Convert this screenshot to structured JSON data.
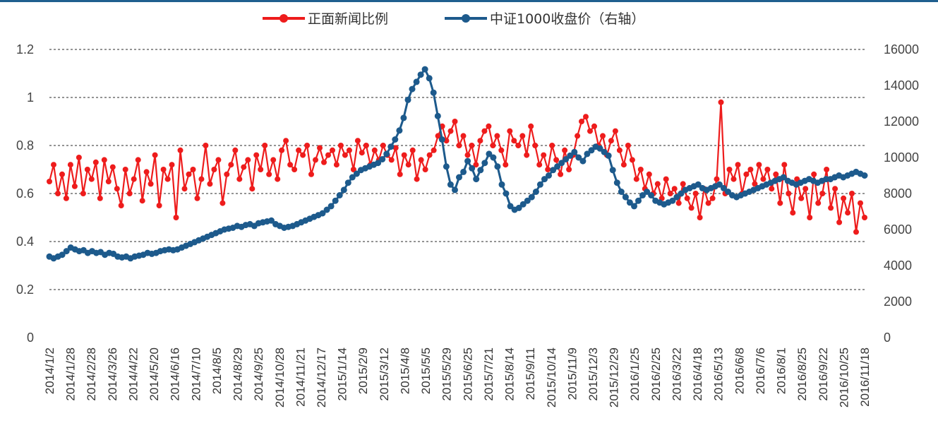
{
  "chart_data": {
    "type": "line",
    "title": "",
    "legend": {
      "position": "top-center",
      "items": [
        {
          "label": "正面新闻比例",
          "color": "#ee1c1c"
        },
        {
          "label": "中证1000收盘价（右轴）",
          "color": "#1d5a8c"
        }
      ]
    },
    "grid": "horizontal-dashed",
    "left_axis": {
      "min": 0,
      "max": 1.2,
      "ticks": [
        "0",
        "0.2",
        "0.4",
        "0.6",
        "0.8",
        "1",
        "1.2"
      ]
    },
    "right_axis": {
      "min": 0,
      "max": 16000,
      "ticks": [
        "0",
        "2000",
        "4000",
        "6000",
        "8000",
        "10000",
        "12000",
        "14000",
        "16000"
      ]
    },
    "x_tick_labels": [
      "2014/1/2",
      "2014/1/28",
      "2014/2/28",
      "2014/3/26",
      "2014/4/22",
      "2014/5/20",
      "2014/6/16",
      "2014/7/10",
      "2014/8/5",
      "2014/8/29",
      "2014/9/25",
      "2014/10/28",
      "2014/11/21",
      "2014/12/17",
      "2015/1/14",
      "2015/2/9",
      "2015/3/12",
      "2015/4/8",
      "2015/5/5",
      "2015/5/29",
      "2015/6/25",
      "2015/7/21",
      "2015/8/14",
      "2015/9/11",
      "2015/10/14",
      "2015/11/9",
      "2015/12/3",
      "2015/12/29",
      "2016/1/25",
      "2016/2/25",
      "2016/3/22",
      "2016/4/18",
      "2016/5/13",
      "2016/6/8",
      "2016/7/6",
      "2016/8/1",
      "2016/8/25",
      "2016/9/22",
      "2016/10/25",
      "2016/11/18"
    ],
    "series": [
      {
        "name": "正面新闻比例",
        "axis": "left",
        "values": [
          0.65,
          0.72,
          0.6,
          0.68,
          0.58,
          0.72,
          0.63,
          0.75,
          0.6,
          0.7,
          0.66,
          0.73,
          0.58,
          0.74,
          0.65,
          0.71,
          0.62,
          0.55,
          0.7,
          0.6,
          0.66,
          0.74,
          0.57,
          0.69,
          0.64,
          0.76,
          0.55,
          0.7,
          0.66,
          0.72,
          0.5,
          0.78,
          0.62,
          0.68,
          0.7,
          0.58,
          0.66,
          0.8,
          0.64,
          0.7,
          0.74,
          0.56,
          0.68,
          0.72,
          0.78,
          0.66,
          0.71,
          0.74,
          0.62,
          0.76,
          0.7,
          0.8,
          0.68,
          0.74,
          0.66,
          0.78,
          0.82,
          0.72,
          0.7,
          0.78,
          0.76,
          0.8,
          0.68,
          0.74,
          0.79,
          0.73,
          0.76,
          0.78,
          0.72,
          0.8,
          0.76,
          0.78,
          0.7,
          0.82,
          0.77,
          0.8,
          0.72,
          0.78,
          0.74,
          0.8,
          0.76,
          0.74,
          0.79,
          0.68,
          0.76,
          0.72,
          0.78,
          0.66,
          0.74,
          0.7,
          0.76,
          0.78,
          0.84,
          0.88,
          0.82,
          0.86,
          0.9,
          0.8,
          0.84,
          0.76,
          0.8,
          0.72,
          0.82,
          0.86,
          0.88,
          0.8,
          0.84,
          0.78,
          0.72,
          0.86,
          0.82,
          0.8,
          0.84,
          0.76,
          0.88,
          0.8,
          0.72,
          0.76,
          0.7,
          0.8,
          0.74,
          0.68,
          0.78,
          0.7,
          0.76,
          0.84,
          0.9,
          0.92,
          0.86,
          0.88,
          0.8,
          0.84,
          0.76,
          0.82,
          0.86,
          0.78,
          0.72,
          0.8,
          0.74,
          0.66,
          0.7,
          0.62,
          0.68,
          0.6,
          0.64,
          0.58,
          0.66,
          0.6,
          0.62,
          0.56,
          0.64,
          0.58,
          0.54,
          0.6,
          0.5,
          0.62,
          0.56,
          0.58,
          0.66,
          0.98,
          0.6,
          0.7,
          0.66,
          0.72,
          0.6,
          0.68,
          0.7,
          0.64,
          0.72,
          0.66,
          0.7,
          0.62,
          0.68,
          0.56,
          0.72,
          0.6,
          0.52,
          0.66,
          0.58,
          0.62,
          0.5,
          0.68,
          0.56,
          0.6,
          0.7,
          0.54,
          0.62,
          0.48,
          0.58,
          0.52,
          0.6,
          0.44,
          0.56,
          0.5
        ]
      },
      {
        "name": "中证1000收盘价（右轴）",
        "axis": "right",
        "values": [
          4500,
          4400,
          4500,
          4600,
          4800,
          5000,
          4900,
          4800,
          4850,
          4700,
          4800,
          4700,
          4750,
          4600,
          4700,
          4650,
          4500,
          4450,
          4500,
          4400,
          4500,
          4550,
          4600,
          4700,
          4650,
          4700,
          4800,
          4850,
          4900,
          4850,
          4900,
          5000,
          5100,
          5200,
          5300,
          5400,
          5500,
          5600,
          5700,
          5800,
          5900,
          6000,
          6050,
          6100,
          6200,
          6150,
          6250,
          6300,
          6200,
          6350,
          6400,
          6450,
          6500,
          6300,
          6200,
          6100,
          6150,
          6200,
          6300,
          6400,
          6500,
          6600,
          6700,
          6800,
          6900,
          7100,
          7300,
          7600,
          7900,
          8200,
          8600,
          8900,
          9100,
          9300,
          9400,
          9500,
          9600,
          9700,
          9900,
          10200,
          10600,
          11000,
          11500,
          12200,
          13200,
          13800,
          14200,
          14600,
          14900,
          14400,
          13600,
          12300,
          11000,
          9500,
          8500,
          8200,
          8900,
          9200,
          9800,
          9400,
          8800,
          9300,
          9700,
          10200,
          10000,
          9500,
          8500,
          8000,
          7300,
          7100,
          7200,
          7400,
          7600,
          7800,
          8100,
          8500,
          8800,
          9000,
          9300,
          9500,
          9700,
          9900,
          10100,
          10300,
          10000,
          9800,
          10200,
          10400,
          10600,
          10500,
          10300,
          10100,
          9300,
          8600,
          8100,
          7800,
          7500,
          7300,
          7600,
          7900,
          8100,
          7900,
          7600,
          7500,
          7400,
          7500,
          7600,
          7800,
          8000,
          8200,
          8300,
          8400,
          8500,
          8300,
          8200,
          8300,
          8400,
          8500,
          8300,
          8100,
          7900,
          7800,
          7900,
          8000,
          8100,
          8200,
          8300,
          8400,
          8500,
          8600,
          8700,
          8800,
          8900,
          8700,
          8600,
          8500,
          8600,
          8700,
          8800,
          8700,
          8600,
          8700,
          8800,
          8800,
          8900,
          9000,
          8900,
          9000,
          9100,
          9200,
          9100,
          9000
        ]
      }
    ]
  }
}
